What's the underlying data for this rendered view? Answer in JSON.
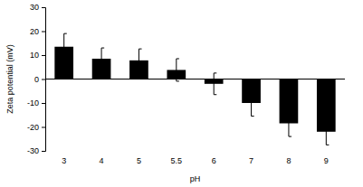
{
  "chart_data": {
    "type": "bar",
    "categories": [
      "3",
      "4",
      "5",
      "5.5",
      "6",
      "7",
      "8",
      "9"
    ],
    "values": [
      13.5,
      8.5,
      7.8,
      3.8,
      -2,
      -10,
      -18.5,
      -22
    ],
    "errors": [
      5.5,
      4.5,
      4.8,
      4.7,
      4.5,
      5.5,
      5.5,
      5.5
    ],
    "color": "#000000",
    "x_label": "pH",
    "y_label": "Zeta potential (mV)",
    "ylim": [
      -30,
      30
    ],
    "yticks": [
      -30,
      -20,
      -10,
      0,
      10,
      20,
      30
    ],
    "grid": false
  }
}
